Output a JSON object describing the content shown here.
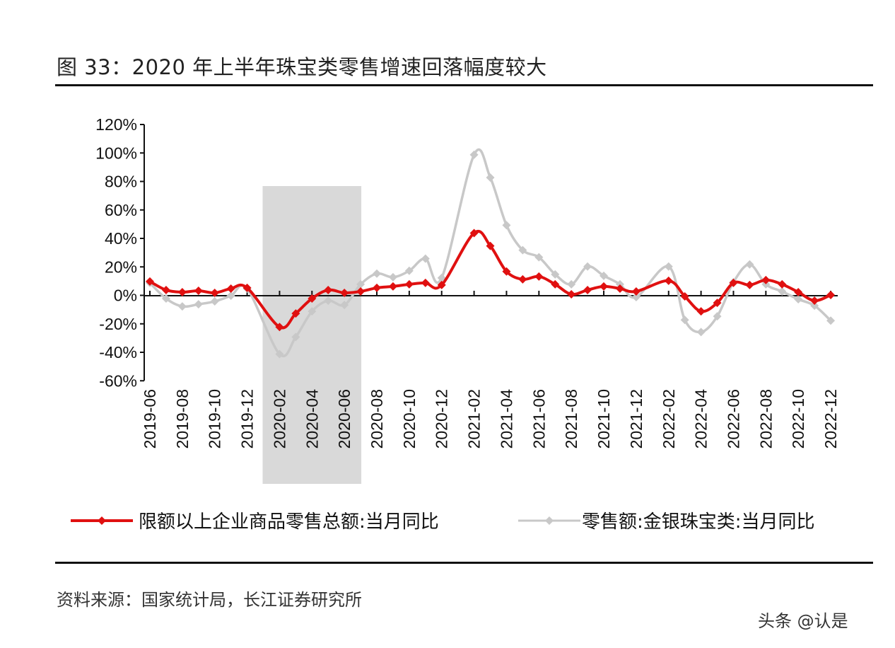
{
  "title": "图 33：2020 年上半年珠宝类零售增速回落幅度较大",
  "source": "资料来源：国家统计局，长江证券研究所",
  "watermark": "头条 @认是",
  "chart_data": {
    "type": "line",
    "title": "",
    "xlabel": "",
    "ylabel": "",
    "ylim": [
      -60,
      120
    ],
    "yticks": [
      "120%",
      "100%",
      "80%",
      "60%",
      "40%",
      "20%",
      "0%",
      "-20%",
      "-40%",
      "-60%"
    ],
    "xtick_labels": [
      "2019-06",
      "2019-08",
      "2019-10",
      "2019-12",
      "2020-02",
      "2020-04",
      "2020-06",
      "2020-08",
      "2020-10",
      "2020-12",
      "2021-02",
      "2021-04",
      "2021-06",
      "2021-08",
      "2021-10",
      "2021-12",
      "2022-02",
      "2022-04",
      "2022-06",
      "2022-08",
      "2022-10",
      "2022-12"
    ],
    "shaded_period": [
      "2020-01",
      "2020-07"
    ],
    "legend_position": "bottom",
    "x": [
      "2019-06",
      "2019-07",
      "2019-08",
      "2019-09",
      "2019-10",
      "2019-11",
      "2019-12",
      "2020-02",
      "2020-03",
      "2020-04",
      "2020-05",
      "2020-06",
      "2020-07",
      "2020-08",
      "2020-09",
      "2020-10",
      "2020-11",
      "2020-12",
      "2021-02",
      "2021-03",
      "2021-04",
      "2021-05",
      "2021-06",
      "2021-07",
      "2021-08",
      "2021-09",
      "2021-10",
      "2021-11",
      "2021-12",
      "2022-02",
      "2022-03",
      "2022-04",
      "2022-05",
      "2022-06",
      "2022-07",
      "2022-08",
      "2022-09",
      "2022-10",
      "2022-11",
      "2022-12"
    ],
    "series": [
      {
        "name": "限额以上企业商品零售总额:当月同比",
        "color": "#e01010",
        "values": [
          10,
          4,
          2.5,
          3.5,
          2,
          5,
          5.5,
          -22,
          -12.5,
          -2,
          4,
          2,
          3,
          5.5,
          6.5,
          8,
          9,
          7.5,
          44,
          35,
          17,
          11.5,
          13.5,
          8,
          1,
          4,
          6.5,
          5,
          3,
          10.5,
          -0.5,
          -11,
          -5,
          9,
          7.5,
          11,
          8,
          2.5,
          -3.5,
          0.5
        ]
      },
      {
        "name": "零售额:金银珠宝类:当月同比",
        "color": "#c8c8c8",
        "values": [
          9,
          -2,
          -7.5,
          -6,
          -4,
          0,
          5,
          -41,
          -29,
          -11,
          -3.5,
          -6.5,
          8,
          15.5,
          13,
          17.5,
          26,
          12.5,
          99,
          83,
          49.5,
          32,
          27,
          15,
          8,
          20.5,
          14,
          8,
          -1,
          20.5,
          -17,
          -25.5,
          -14.5,
          9.5,
          22,
          8,
          3,
          -2.5,
          -7,
          -17.5
        ]
      }
    ]
  }
}
